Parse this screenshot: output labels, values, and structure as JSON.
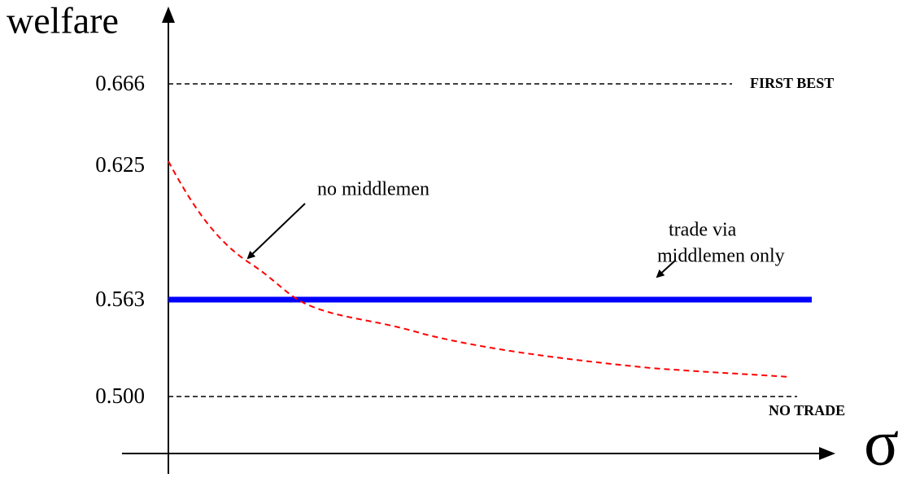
{
  "y_axis_label": "welfare",
  "x_axis_label": "σ",
  "ticks": [
    "0.666",
    "0.625",
    "0.563",
    "0.500"
  ],
  "reference_labels": {
    "first_best": "FIRST BEST",
    "no_trade": "NO TRADE"
  },
  "annotations": {
    "no_middlemen": "no middlemen",
    "trade_via_1": "trade via",
    "trade_via_2": "middlemen only"
  }
}
